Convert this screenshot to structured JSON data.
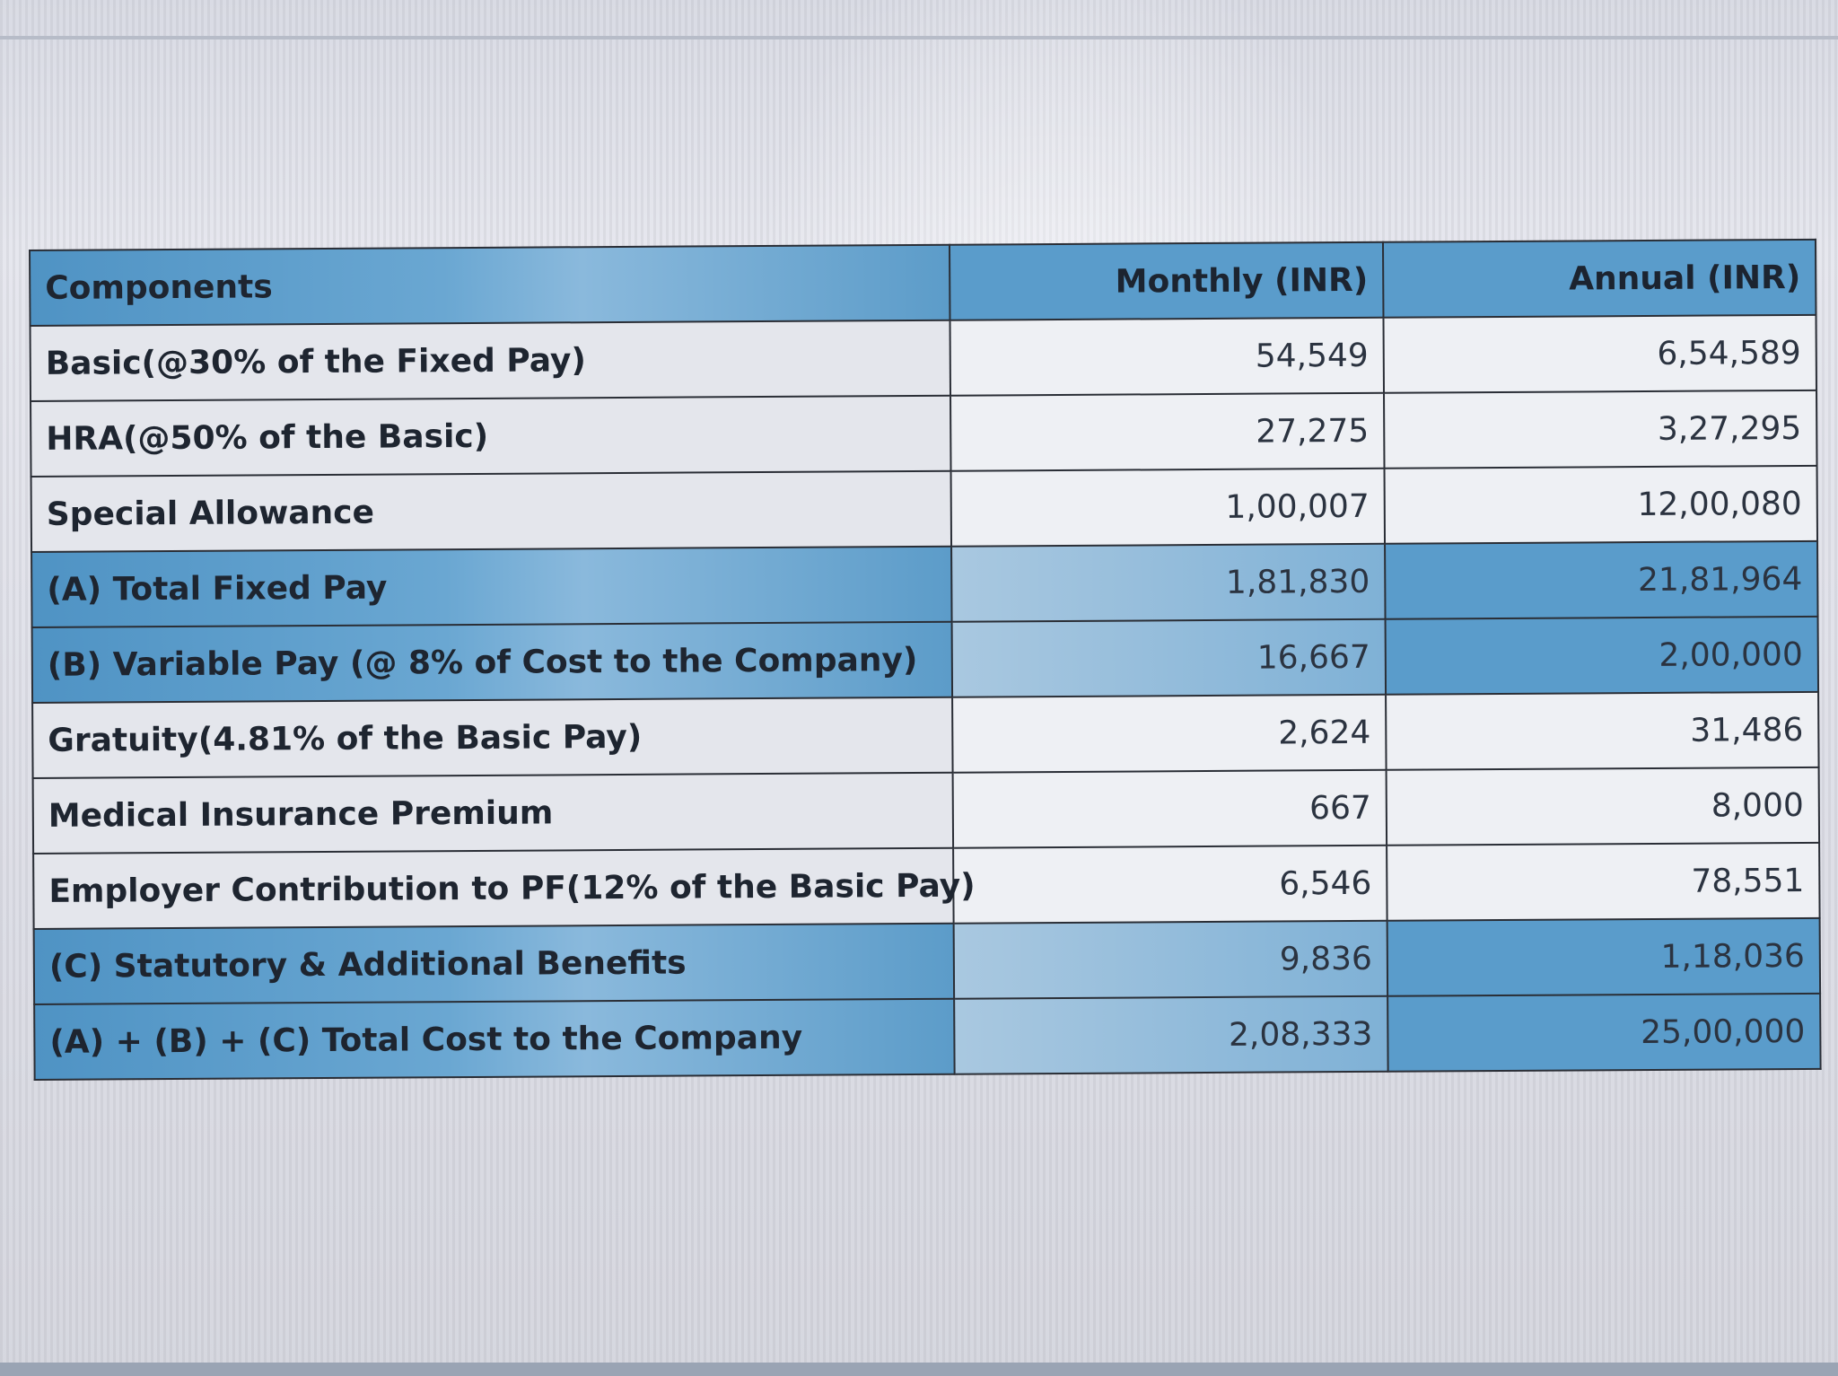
{
  "table": {
    "headers": [
      "Components",
      "Monthly (INR)",
      "Annual (INR)"
    ],
    "rows": [
      {
        "component": "Basic(@30% of the Fixed Pay)",
        "monthly": "54,549",
        "annual": "6,54,589"
      },
      {
        "component": "HRA(@50% of the Basic)",
        "monthly": "27,275",
        "annual": "3,27,295"
      },
      {
        "component": "Special Allowance",
        "monthly": "1,00,007",
        "annual": "12,00,080"
      },
      {
        "component": "(A) Total Fixed Pay",
        "monthly": "1,81,830",
        "annual": "21,81,964"
      },
      {
        "component": "(B) Variable Pay (@ 8% of Cost to the Company)",
        "monthly": "16,667",
        "annual": "2,00,000"
      },
      {
        "component": "Gratuity(4.81% of the Basic Pay)",
        "monthly": "2,624",
        "annual": "31,486"
      },
      {
        "component": "Medical Insurance Premium",
        "monthly": "667",
        "annual": "8,000"
      },
      {
        "component": "Employer Contribution to PF(12% of the Basic Pay)",
        "monthly": "6,546",
        "annual": "78,551"
      },
      {
        "component": "(C) Statutory & Additional Benefits",
        "monthly": "9,836",
        "annual": "1,18,036"
      },
      {
        "component": "(A) + (B) + (C) Total Cost to the Company",
        "monthly": "2,08,333",
        "annual": "25,00,000"
      }
    ]
  },
  "colors": {
    "highlight_row": "#5a9ccb",
    "plain_row": "#e4e6ec",
    "border": "#2a2e36",
    "text": "#1e2530"
  }
}
